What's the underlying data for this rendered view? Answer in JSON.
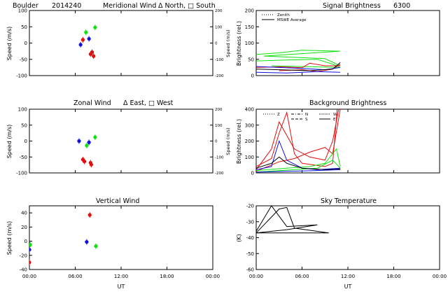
{
  "figure": {
    "site": "Boulder",
    "date_code": "2014240"
  },
  "colors": {
    "red": "#e01010",
    "green": "#10e010",
    "blue": "#1010e0",
    "black": "#000000"
  },
  "chart_data": [
    {
      "id": "meridional",
      "type": "scatter",
      "title": "Meridional Wind",
      "title_extra": "Δ North, □ South",
      "ylabel": "Speed (m/s)",
      "ylabel_right": "Speed (m/s)",
      "xlim": [
        0,
        24
      ],
      "ylim": [
        -100,
        100
      ],
      "yticks": [
        "100",
        "50",
        "0",
        "-50",
        "-100"
      ],
      "yticks_right_values": [
        200,
        100,
        0,
        -100,
        -200
      ],
      "yticks_right": [
        "200",
        "100",
        "0",
        "-100",
        "-200"
      ],
      "right_axis_range": [
        -200,
        200
      ],
      "xticks": [
        0,
        6,
        12,
        18,
        24
      ],
      "xticklabels": [],
      "series": [
        {
          "color": "red",
          "points": [
            [
              7.0,
              10
            ],
            [
              8.2,
              -28
            ],
            [
              8.4,
              -40
            ],
            [
              8.0,
              -34
            ]
          ]
        },
        {
          "color": "green",
          "points": [
            [
              7.4,
              33
            ],
            [
              8.6,
              48
            ]
          ]
        },
        {
          "color": "blue",
          "points": [
            [
              6.7,
              -5
            ],
            [
              7.8,
              13
            ]
          ]
        }
      ]
    },
    {
      "id": "zonal",
      "type": "scatter",
      "title": "Zonal Wind",
      "title_extra": "Δ East, □ West",
      "ylabel": "Speed (m/s)",
      "ylabel_right": "Speed (m/s)",
      "xlim": [
        0,
        24
      ],
      "ylim": [
        -100,
        100
      ],
      "yticks": [
        "100",
        "50",
        "0",
        "-50",
        "-100"
      ],
      "yticks_right_values": [
        200,
        100,
        0,
        -100,
        -200
      ],
      "yticks_right": [
        "200",
        "100",
        "0",
        "-100",
        "-200"
      ],
      "right_axis_range": [
        -200,
        200
      ],
      "xticks": [
        0,
        6,
        12,
        18,
        24
      ],
      "xticklabels": [],
      "series": [
        {
          "color": "red",
          "points": [
            [
              7.0,
              -58
            ],
            [
              7.2,
              -64
            ],
            [
              8.0,
              -68
            ],
            [
              8.1,
              -74
            ]
          ]
        },
        {
          "color": "green",
          "points": [
            [
              7.5,
              -14
            ],
            [
              8.6,
              12
            ]
          ]
        },
        {
          "color": "blue",
          "points": [
            [
              6.5,
              0
            ],
            [
              7.8,
              -4
            ]
          ]
        }
      ]
    },
    {
      "id": "vertical",
      "type": "scatter",
      "title": "Vertical Wind",
      "ylabel": "Speed (m/s)",
      "xlim": [
        0,
        24
      ],
      "ylim": [
        -40,
        50
      ],
      "yticks": [
        "40",
        "20",
        "0",
        "-20",
        "-40"
      ],
      "yticks_values": [
        40,
        20,
        0,
        -20,
        -40
      ],
      "xticks": [
        0,
        6,
        12,
        18,
        24
      ],
      "xticklabels": [
        "00:00",
        "06:00",
        "12:00",
        "18:00",
        "00:00"
      ],
      "xlabel": "UT",
      "series": [
        {
          "color": "red",
          "points": [
            [
              0.0,
              -30
            ],
            [
              7.9,
              37
            ]
          ]
        },
        {
          "color": "green",
          "points": [
            [
              0.1,
              -5
            ],
            [
              8.7,
              -7
            ]
          ]
        },
        {
          "color": "blue",
          "points": [
            [
              0.0,
              -12
            ],
            [
              7.5,
              -1
            ]
          ]
        }
      ]
    },
    {
      "id": "signal",
      "type": "line",
      "title": "Signal Brightness",
      "title_extra": "6300",
      "ylabel": "Brightness (rel.)",
      "xlim": [
        0,
        24
      ],
      "ylim": [
        0,
        200
      ],
      "yticks": [
        "200",
        "150",
        "100",
        "50",
        "0"
      ],
      "xticks": [
        0,
        6,
        12,
        18,
        24
      ],
      "xticklabels": [],
      "legend": [
        "Zenith",
        "MSWE Average"
      ],
      "series": [
        {
          "color": "green",
          "points": [
            [
              0,
              65
            ],
            [
              3,
              70
            ],
            [
              6,
              78
            ],
            [
              11,
              75
            ],
            [
              1,
              60
            ],
            [
              9,
              52
            ],
            [
              11,
              30
            ]
          ]
        },
        {
          "color": "green",
          "points": [
            [
              0,
              45
            ],
            [
              4,
              48
            ],
            [
              8,
              50
            ],
            [
              10,
              35
            ],
            [
              11,
              25
            ],
            [
              2,
              30
            ]
          ]
        },
        {
          "color": "red",
          "points": [
            [
              0,
              25
            ],
            [
              3,
              27
            ],
            [
              6,
              24
            ],
            [
              7,
              38
            ],
            [
              9,
              30
            ],
            [
              11,
              30
            ]
          ]
        },
        {
          "color": "red",
          "points": [
            [
              3,
              15
            ],
            [
              6,
              18
            ],
            [
              8,
              12
            ],
            [
              10,
              20
            ],
            [
              11,
              35
            ]
          ]
        },
        {
          "color": "blue",
          "points": [
            [
              0,
              28
            ],
            [
              3,
              25
            ],
            [
              6,
              22
            ],
            [
              9,
              18
            ],
            [
              11,
              25
            ]
          ]
        },
        {
          "color": "blue",
          "points": [
            [
              0,
              10
            ],
            [
              4,
              8
            ],
            [
              8,
              12
            ],
            [
              11,
              10
            ]
          ]
        },
        {
          "color": "black",
          "points": [
            [
              0,
              20
            ],
            [
              3,
              18
            ],
            [
              7,
              15
            ],
            [
              10,
              20
            ],
            [
              11,
              40
            ]
          ]
        }
      ]
    },
    {
      "id": "background",
      "type": "line",
      "title": "Background Brightness",
      "ylabel": "Brightness (rel.)",
      "xlim": [
        0,
        24
      ],
      "ylim": [
        0,
        400
      ],
      "yticks": [
        "400",
        "300",
        "200",
        "100",
        "0"
      ],
      "xticks": [
        0,
        6,
        12,
        18,
        24
      ],
      "xticklabels": [],
      "legend": [
        "Z",
        "N",
        "S",
        "W",
        "E"
      ],
      "series": [
        {
          "color": "red",
          "points": [
            [
              0,
              40
            ],
            [
              2,
              90
            ],
            [
              3,
              250
            ],
            [
              4,
              380
            ],
            [
              5,
              120
            ],
            [
              6,
              60
            ],
            [
              9,
              40
            ],
            [
              10,
              60
            ],
            [
              10.6,
              400
            ]
          ]
        },
        {
          "color": "red",
          "points": [
            [
              0,
              20
            ],
            [
              2,
              150
            ],
            [
              3,
              320
            ],
            [
              5,
              150
            ],
            [
              7,
              100
            ],
            [
              9,
              80
            ],
            [
              10,
              200
            ],
            [
              10.8,
              400
            ]
          ]
        },
        {
          "color": "red",
          "points": [
            [
              0,
              10
            ],
            [
              3,
              70
            ],
            [
              5,
              90
            ],
            [
              7,
              130
            ],
            [
              9,
              160
            ],
            [
              10,
              120
            ],
            [
              11,
              400
            ]
          ]
        },
        {
          "color": "green",
          "points": [
            [
              0,
              15
            ],
            [
              4,
              30
            ],
            [
              7,
              40
            ],
            [
              9,
              60
            ],
            [
              10.5,
              150
            ],
            [
              11,
              40
            ]
          ]
        },
        {
          "color": "green",
          "points": [
            [
              0,
              5
            ],
            [
              5,
              20
            ],
            [
              8,
              30
            ],
            [
              10,
              80
            ],
            [
              11,
              30
            ]
          ]
        },
        {
          "color": "blue",
          "points": [
            [
              0,
              20
            ],
            [
              2,
              40
            ],
            [
              3,
              200
            ],
            [
              4,
              80
            ],
            [
              6,
              30
            ],
            [
              8,
              20
            ],
            [
              11,
              30
            ]
          ]
        },
        {
          "color": "blue",
          "points": [
            [
              0,
              5
            ],
            [
              4,
              10
            ],
            [
              8,
              15
            ],
            [
              11,
              20
            ]
          ]
        },
        {
          "color": "black",
          "points": [
            [
              0,
              30
            ],
            [
              2,
              60
            ],
            [
              3,
              100
            ],
            [
              4,
              60
            ],
            [
              6,
              30
            ],
            [
              9,
              20
            ],
            [
              11,
              25
            ]
          ]
        }
      ]
    },
    {
      "id": "skytemp",
      "type": "line",
      "title": "Sky Temperature",
      "ylabel": "(K)",
      "xlim": [
        0,
        24
      ],
      "ylim": [
        -60,
        -20
      ],
      "yticks": [
        "-20",
        "-30",
        "-40",
        "-50",
        "-60"
      ],
      "xticks": [
        0,
        6,
        12,
        18,
        24
      ],
      "xticklabels": [
        "00:00",
        "06:00",
        "12:00",
        "18:00",
        "00:00"
      ],
      "xlabel": "UT",
      "series": [
        {
          "color": "black",
          "points": [
            [
              0,
              -36
            ],
            [
              2,
              -20
            ],
            [
              4,
              -33
            ],
            [
              8,
              -32
            ],
            [
              4,
              -35
            ],
            [
              0,
              -37
            ],
            [
              9.5,
              -37
            ],
            [
              5,
              -34
            ],
            [
              4,
              -21
            ],
            [
              3,
              -22
            ],
            [
              0,
              -37
            ],
            [
              2,
              -36
            ]
          ]
        }
      ]
    }
  ]
}
